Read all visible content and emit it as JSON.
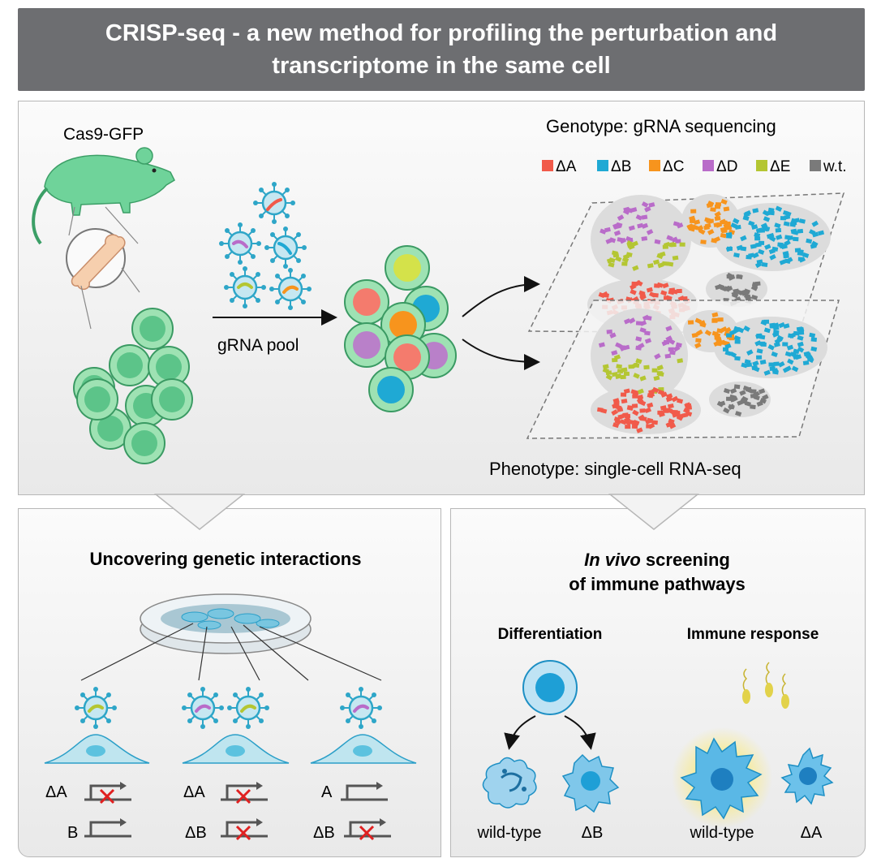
{
  "header": {
    "title_line1": "CRISP-seq - a new method for profiling the perturbation and",
    "title_line2": "transcriptome in the same cell"
  },
  "top": {
    "mouse_label": "Cas9-GFP",
    "pool_label": "gRNA pool",
    "genotype_label": "Genotype: gRNA sequencing",
    "phenotype_label": "Phenotype: single-cell RNA-seq",
    "legend": [
      {
        "label": "ΔA",
        "color": "#f15a4a"
      },
      {
        "label": "ΔB",
        "color": "#1fa9d4"
      },
      {
        "label": "ΔC",
        "color": "#f7941d"
      },
      {
        "label": "ΔD",
        "color": "#b96cc9"
      },
      {
        "label": "ΔE",
        "color": "#b4c632"
      },
      {
        "label": "w.t.",
        "color": "#7a7a7a"
      }
    ]
  },
  "left": {
    "title": "Uncovering genetic interactions",
    "conditions": [
      {
        "gene1": "ΔA",
        "gene2": "B"
      },
      {
        "gene1": "ΔA",
        "gene2": "ΔB"
      },
      {
        "gene1": "A",
        "gene2": "ΔB"
      }
    ]
  },
  "right": {
    "title_italic": "In vivo",
    "title_rest": " screening",
    "title_line2": "of immune pathways",
    "diff_label": "Differentiation",
    "immune_label": "Immune response",
    "diff_wt": "wild-type",
    "diff_mut": "ΔB",
    "imm_wt": "wild-type",
    "imm_mut": "ΔA"
  }
}
